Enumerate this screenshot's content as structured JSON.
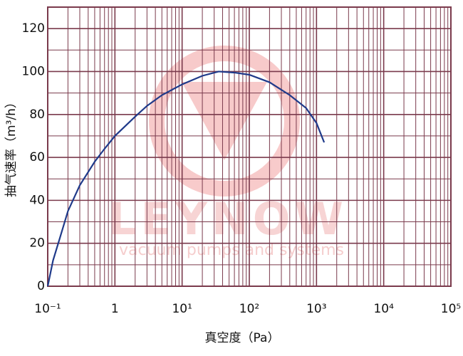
{
  "chart_data": {
    "type": "line",
    "x_label": "真空度（Pa）",
    "y_label": "抽气速率（m³/h）",
    "watermark": "LEYNOW",
    "watermark_subtitle": "vacuum pumps and systems",
    "x_log": true,
    "grid": true,
    "grid_color": "#7a3a4c",
    "xlim": [
      0.1,
      100000
    ],
    "xticks": [
      {
        "value": 0.1,
        "label": "10⁻¹"
      },
      1,
      {
        "value": 10,
        "label": "10¹"
      },
      {
        "value": 100,
        "label": "10²"
      },
      {
        "value": 1000,
        "label": "10³"
      },
      {
        "value": 10000,
        "label": "10⁴"
      },
      {
        "value": 100000,
        "label": "10⁵"
      }
    ],
    "ylim": [
      0,
      130
    ],
    "yticks": [
      0,
      20,
      40,
      60,
      80,
      100,
      120
    ],
    "x": [
      0.1,
      0.12,
      0.15,
      0.2,
      0.3,
      0.5,
      0.7,
      1,
      2,
      3,
      5,
      10,
      20,
      35,
      60,
      100,
      200,
      400,
      700,
      1000,
      1300
    ],
    "series": [
      {
        "color": "#1f3a8a",
        "values": [
          0,
          12,
          22,
          35,
          47,
          58,
          64,
          70,
          79,
          84,
          89,
          94,
          98,
          100,
          99.5,
          98.5,
          95,
          89,
          83,
          76,
          67
        ]
      }
    ]
  }
}
